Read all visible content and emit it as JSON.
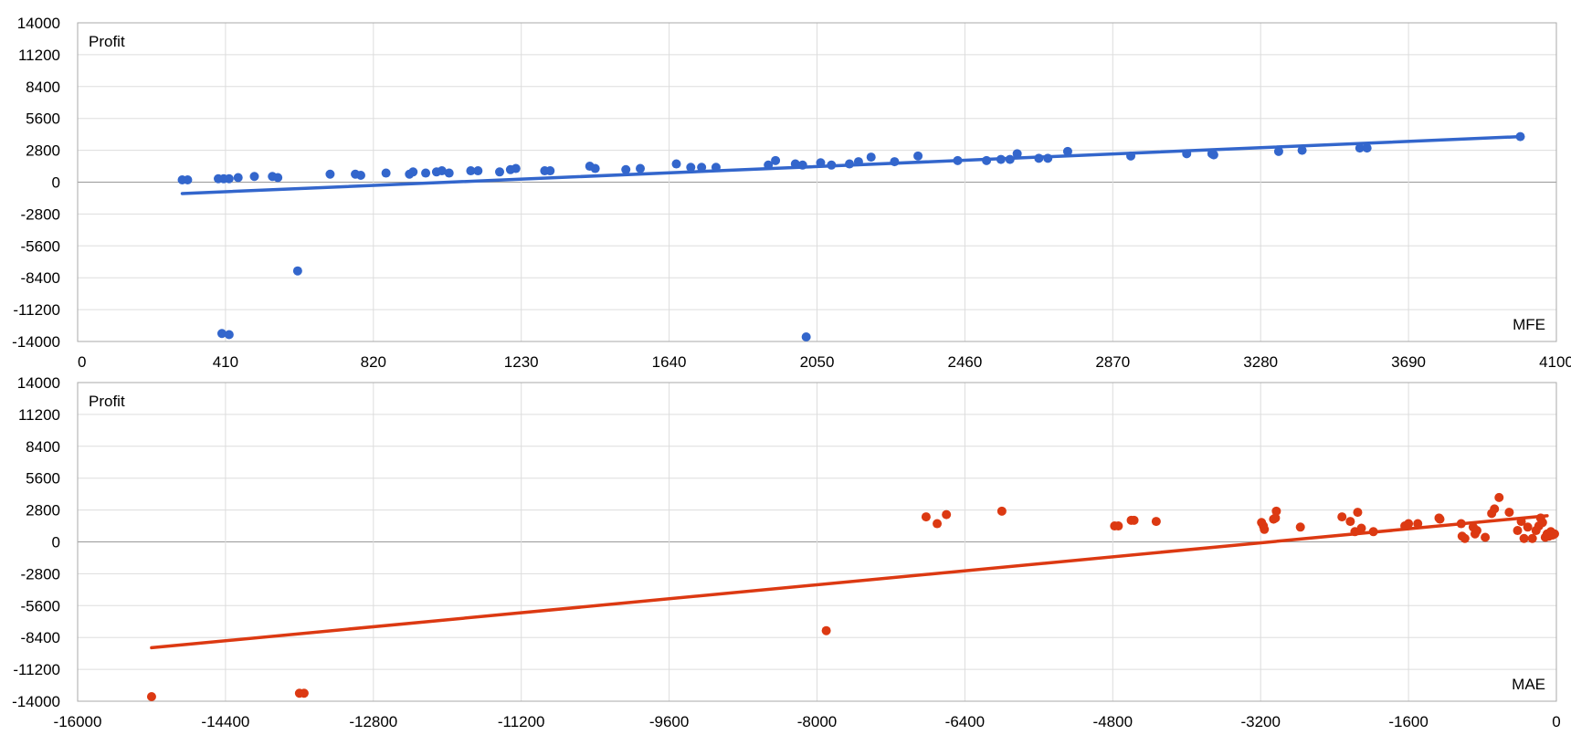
{
  "chart_data": [
    {
      "type": "scatter",
      "id": "mfe",
      "ylabel": "Profit",
      "xlabel": "MFE",
      "xlim": [
        0,
        4100
      ],
      "ylim": [
        -14000,
        14000
      ],
      "x_ticks": [
        "0",
        "410",
        "820",
        "1230",
        "1640",
        "2050",
        "2460",
        "2870",
        "3280",
        "3690",
        "4100"
      ],
      "y_ticks": [
        "14000",
        "11200",
        "8400",
        "5600",
        "2800",
        "0",
        "-2800",
        "-5600",
        "-8400",
        "-11200",
        "-14000"
      ],
      "grid": true,
      "color": "#3366cc",
      "trendline": {
        "x1": 290,
        "y1": -1000,
        "x2": 4000,
        "y2": 4000
      },
      "points": [
        [
          290,
          200
        ],
        [
          305,
          200
        ],
        [
          390,
          300
        ],
        [
          405,
          300
        ],
        [
          420,
          300
        ],
        [
          445,
          400
        ],
        [
          490,
          500
        ],
        [
          540,
          500
        ],
        [
          555,
          400
        ],
        [
          700,
          700
        ],
        [
          770,
          700
        ],
        [
          785,
          600
        ],
        [
          855,
          800
        ],
        [
          920,
          700
        ],
        [
          930,
          900
        ],
        [
          965,
          800
        ],
        [
          995,
          900
        ],
        [
          1010,
          1000
        ],
        [
          1030,
          800
        ],
        [
          1090,
          1000
        ],
        [
          1110,
          1000
        ],
        [
          1170,
          900
        ],
        [
          1200,
          1100
        ],
        [
          1215,
          1200
        ],
        [
          1295,
          1000
        ],
        [
          1310,
          1000
        ],
        [
          1420,
          1400
        ],
        [
          1435,
          1200
        ],
        [
          1520,
          1100
        ],
        [
          1560,
          1200
        ],
        [
          1660,
          1600
        ],
        [
          1700,
          1300
        ],
        [
          1730,
          1300
        ],
        [
          1770,
          1300
        ],
        [
          1915,
          1500
        ],
        [
          1935,
          1900
        ],
        [
          1990,
          1600
        ],
        [
          2010,
          1500
        ],
        [
          2060,
          1700
        ],
        [
          2090,
          1500
        ],
        [
          2140,
          1600
        ],
        [
          2165,
          1800
        ],
        [
          2200,
          2200
        ],
        [
          2265,
          1800
        ],
        [
          2330,
          2300
        ],
        [
          2440,
          1900
        ],
        [
          2520,
          1900
        ],
        [
          2560,
          2000
        ],
        [
          2585,
          2000
        ],
        [
          2605,
          2500
        ],
        [
          2665,
          2100
        ],
        [
          2690,
          2100
        ],
        [
          2745,
          2700
        ],
        [
          2920,
          2300
        ],
        [
          3075,
          2500
        ],
        [
          3145,
          2500
        ],
        [
          3150,
          2400
        ],
        [
          3330,
          2700
        ],
        [
          3395,
          2800
        ],
        [
          3555,
          3000
        ],
        [
          3575,
          3000
        ],
        [
          4000,
          4000
        ],
        [
          400,
          -13300
        ],
        [
          420,
          -13400
        ],
        [
          610,
          -7800
        ],
        [
          2020,
          -13600
        ]
      ]
    },
    {
      "type": "scatter",
      "id": "mae",
      "ylabel": "Profit",
      "xlabel": "MAE",
      "xlim": [
        -16000,
        0
      ],
      "ylim": [
        -14000,
        14000
      ],
      "x_ticks": [
        "-16000",
        "-14400",
        "-12800",
        "-11200",
        "-9600",
        "-8000",
        "-6400",
        "-4800",
        "-3200",
        "-1600",
        "0"
      ],
      "y_ticks": [
        "14000",
        "11200",
        "8400",
        "5600",
        "2800",
        "0",
        "-2800",
        "-5600",
        "-8400",
        "-11200",
        "-14000"
      ],
      "grid": true,
      "color": "#dc3912",
      "trendline": {
        "x1": -15200,
        "y1": -9300,
        "x2": -100,
        "y2": 2300
      },
      "points": [
        [
          -15200,
          -13600
        ],
        [
          -13600,
          -13300
        ],
        [
          -13550,
          -13300
        ],
        [
          -7900,
          -7800
        ],
        [
          -6820,
          2200
        ],
        [
          -6700,
          1600
        ],
        [
          -6600,
          2400
        ],
        [
          -6000,
          2700
        ],
        [
          -4780,
          1400
        ],
        [
          -4740,
          1400
        ],
        [
          -4600,
          1900
        ],
        [
          -4570,
          1900
        ],
        [
          -4330,
          1800
        ],
        [
          -3190,
          1700
        ],
        [
          -3170,
          1400
        ],
        [
          -3160,
          1100
        ],
        [
          -3060,
          2000
        ],
        [
          -3040,
          2100
        ],
        [
          -3030,
          2700
        ],
        [
          -2770,
          1300
        ],
        [
          -2320,
          2200
        ],
        [
          -2230,
          1800
        ],
        [
          -2180,
          900
        ],
        [
          -2150,
          2600
        ],
        [
          -2110,
          1200
        ],
        [
          -1980,
          900
        ],
        [
          -1640,
          1400
        ],
        [
          -1600,
          1600
        ],
        [
          -1500,
          1600
        ],
        [
          -1270,
          2100
        ],
        [
          -1260,
          2000
        ],
        [
          -1030,
          1600
        ],
        [
          -1020,
          500
        ],
        [
          -990,
          300
        ],
        [
          -900,
          1300
        ],
        [
          -880,
          700
        ],
        [
          -860,
          1000
        ],
        [
          -770,
          400
        ],
        [
          -700,
          2500
        ],
        [
          -670,
          2900
        ],
        [
          -620,
          3900
        ],
        [
          -510,
          2600
        ],
        [
          -420,
          1000
        ],
        [
          -380,
          1800
        ],
        [
          -350,
          300
        ],
        [
          -310,
          1300
        ],
        [
          -260,
          300
        ],
        [
          -220,
          1000
        ],
        [
          -190,
          1400
        ],
        [
          -170,
          2100
        ],
        [
          -150,
          1700
        ],
        [
          -120,
          400
        ],
        [
          -100,
          700
        ],
        [
          -80,
          500
        ],
        [
          -60,
          900
        ],
        [
          -40,
          600
        ],
        [
          -20,
          700
        ]
      ]
    }
  ]
}
